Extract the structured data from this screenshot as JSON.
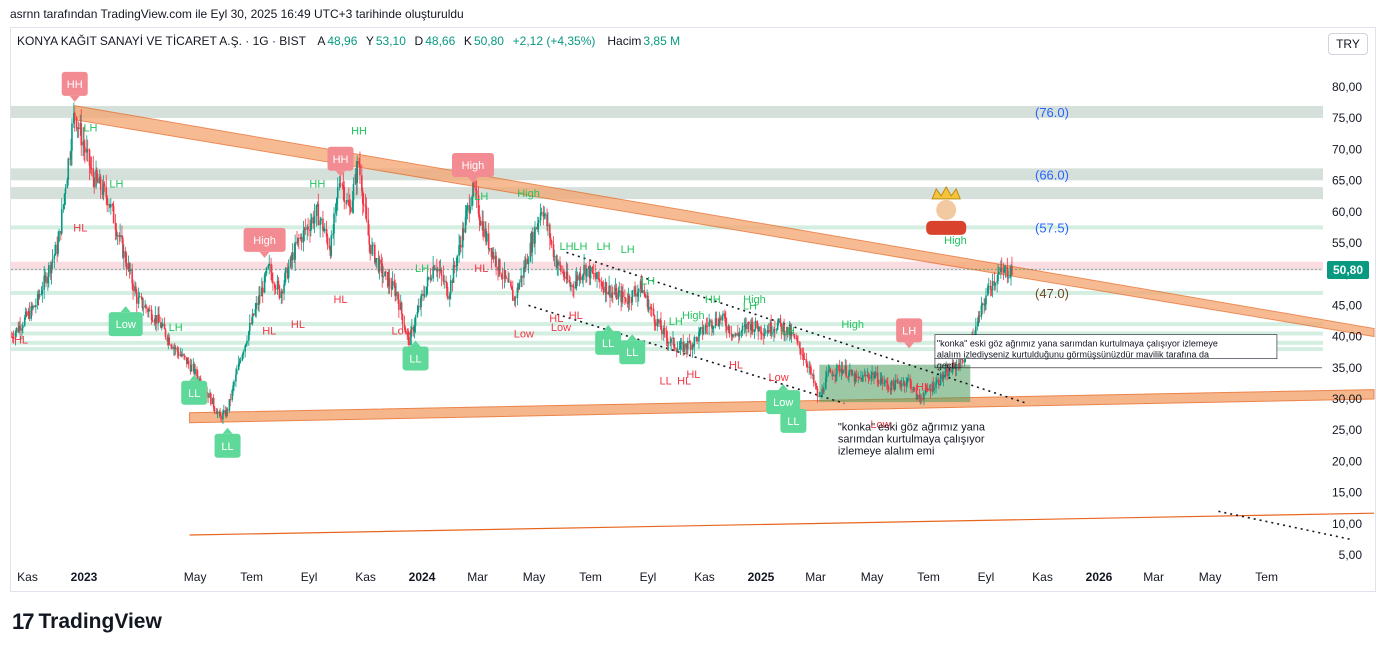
{
  "caption": "asrnn tarafından TradingView.com ile Eyl 30, 2025 16:49 UTC+3 tarihinde oluşturuldu",
  "header": {
    "symbol": "KONYA KAĞIT SANAYİ VE TİCARET A.Ş. · 1G · BIST",
    "open_label": "A",
    "open_value": "48,96",
    "high_label": "Y",
    "high_value": "53,10",
    "low_label": "D",
    "low_value": "48,66",
    "close_label": "K",
    "close_value": "50,80",
    "change": "+2,12 (+4,35%)",
    "volume_label": "Hacim",
    "volume_value": "3,85 M",
    "currency_button": "TRY"
  },
  "brand": {
    "logo": "17",
    "name": "TradingView"
  },
  "colors": {
    "up": "#089981",
    "down": "#f23645",
    "channel_fill": "#f5a56f",
    "channel_stroke": "#e8651e",
    "level_band": "#c8d6cf",
    "green_label": "#22c55e",
    "red_label": "#f23645",
    "fib_text": "#2962ff",
    "dotted": "#131722"
  },
  "chart_data": {
    "type": "candlestick",
    "y_axis": {
      "ticks": [
        "80,00",
        "75,00",
        "70,00",
        "65,00",
        "60,00",
        "55,00",
        "50,00",
        "45,00",
        "40,00",
        "35,00",
        "30,00",
        "25,00",
        "20,00",
        "15,00",
        "10,00",
        "5,00"
      ],
      "ylim": [
        3,
        83
      ]
    },
    "x_axis": {
      "ticks": [
        "Kas",
        "2023",
        "May",
        "Tem",
        "Eyl",
        "Kas",
        "2024",
        "Mar",
        "May",
        "Tem",
        "Eyl",
        "Kas",
        "2025",
        "Mar",
        "May",
        "Tem",
        "Eyl",
        "Kas",
        "2026",
        "Mar",
        "May",
        "Tem"
      ],
      "bold": [
        "2023",
        "2024",
        "2025",
        "2026"
      ]
    },
    "last_price": "50,80",
    "price_series": [
      [
        "2022-10-15",
        40
      ],
      [
        "2022-11-10",
        45
      ],
      [
        "2022-12-05",
        55
      ],
      [
        "2022-12-22",
        76
      ],
      [
        "2023-01-10",
        66
      ],
      [
        "2023-01-28",
        62
      ],
      [
        "2023-02-10",
        55
      ],
      [
        "2023-02-28",
        46
      ],
      [
        "2023-03-20",
        43
      ],
      [
        "2023-04-10",
        38
      ],
      [
        "2023-04-28",
        35
      ],
      [
        "2023-05-15",
        31
      ],
      [
        "2023-05-28",
        27
      ],
      [
        "2023-06-05",
        28
      ],
      [
        "2023-06-20",
        37
      ],
      [
        "2023-07-05",
        44
      ],
      [
        "2023-07-20",
        51
      ],
      [
        "2023-08-01",
        47
      ],
      [
        "2023-08-20",
        55
      ],
      [
        "2023-09-10",
        60
      ],
      [
        "2023-09-25",
        54
      ],
      [
        "2023-10-05",
        66
      ],
      [
        "2023-10-15",
        60
      ],
      [
        "2023-10-25",
        68
      ],
      [
        "2023-11-05",
        55
      ],
      [
        "2023-11-20",
        50
      ],
      [
        "2023-12-05",
        47
      ],
      [
        "2023-12-18",
        39
      ],
      [
        "2023-12-30",
        45
      ],
      [
        "2024-01-15",
        52
      ],
      [
        "2024-01-30",
        47
      ],
      [
        "2024-02-15",
        57
      ],
      [
        "2024-02-25",
        64
      ],
      [
        "2024-03-10",
        56
      ],
      [
        "2024-03-25",
        51
      ],
      [
        "2024-04-10",
        46
      ],
      [
        "2024-04-25",
        53
      ],
      [
        "2024-05-10",
        61
      ],
      [
        "2024-05-25",
        52
      ],
      [
        "2024-06-10",
        48
      ],
      [
        "2024-06-25",
        51
      ],
      [
        "2024-07-10",
        49
      ],
      [
        "2024-07-25",
        47
      ],
      [
        "2024-08-10",
        46
      ],
      [
        "2024-08-25",
        48
      ],
      [
        "2024-09-05",
        44
      ],
      [
        "2024-09-20",
        40
      ],
      [
        "2024-10-05",
        38
      ],
      [
        "2024-10-20",
        39
      ],
      [
        "2024-11-05",
        42
      ],
      [
        "2024-11-20",
        43
      ],
      [
        "2024-12-05",
        40
      ],
      [
        "2024-12-20",
        42
      ],
      [
        "2025-01-05",
        41
      ],
      [
        "2025-01-20",
        42
      ],
      [
        "2025-02-05",
        40
      ],
      [
        "2025-02-20",
        36
      ],
      [
        "2025-03-05",
        30
      ],
      [
        "2025-03-15",
        34
      ],
      [
        "2025-03-30",
        35
      ],
      [
        "2025-04-15",
        33
      ],
      [
        "2025-05-01",
        34
      ],
      [
        "2025-05-20",
        32
      ],
      [
        "2025-06-10",
        33
      ],
      [
        "2025-06-20",
        30
      ],
      [
        "2025-07-05",
        32
      ],
      [
        "2025-07-20",
        34
      ],
      [
        "2025-08-05",
        36
      ],
      [
        "2025-08-15",
        38
      ],
      [
        "2025-08-25",
        43
      ],
      [
        "2025-09-05",
        48
      ],
      [
        "2025-09-15",
        50
      ],
      [
        "2025-09-30",
        50.8
      ]
    ],
    "horizontal_levels": [
      {
        "y": 76.0,
        "label": "(76.0)"
      },
      {
        "y": 66.0,
        "label": "(66.0)"
      },
      {
        "y": 63.0,
        "label": ""
      },
      {
        "y": 57.5,
        "label": "(57.5)"
      },
      {
        "y": 47.0,
        "label": "(47.0)"
      },
      {
        "y": 42.0,
        "label": ""
      },
      {
        "y": 40.5,
        "label": ""
      },
      {
        "y": 39.0,
        "label": ""
      },
      {
        "y": 38.0,
        "label": ""
      }
    ],
    "pattern_labels": [
      {
        "text": "HH",
        "style": "box-red",
        "date": "2022-12-22",
        "y": 80.5
      },
      {
        "text": "LH",
        "style": "green",
        "date": "2023-01-08",
        "y": 73.5
      },
      {
        "text": "LH",
        "style": "green",
        "date": "2023-02-05",
        "y": 64.5
      },
      {
        "text": "HL",
        "style": "red",
        "date": "2022-12-28",
        "y": 57.5
      },
      {
        "text": "Low",
        "style": "box-green",
        "date": "2023-02-15",
        "y": 42
      },
      {
        "text": "HL",
        "style": "red",
        "date": "2022-10-25",
        "y": 39.5
      },
      {
        "text": "LH",
        "style": "green",
        "date": "2023-04-10",
        "y": 41.5
      },
      {
        "text": "LL",
        "style": "box-green",
        "date": "2023-04-30",
        "y": 31
      },
      {
        "text": "LL",
        "style": "box-green",
        "date": "2023-06-05",
        "y": 22.5
      },
      {
        "text": "High",
        "style": "box-red",
        "date": "2023-07-15",
        "y": 55.5
      },
      {
        "text": "HL",
        "style": "red",
        "date": "2023-07-20",
        "y": 41
      },
      {
        "text": "HL",
        "style": "red",
        "date": "2023-08-20",
        "y": 42
      },
      {
        "text": "HH",
        "style": "green",
        "date": "2023-09-10",
        "y": 64.5
      },
      {
        "text": "HH",
        "style": "box-red",
        "date": "2023-10-05",
        "y": 68.5
      },
      {
        "text": "HH",
        "style": "green",
        "date": "2023-10-25",
        "y": 73
      },
      {
        "text": "HL",
        "style": "red",
        "date": "2023-10-05",
        "y": 46
      },
      {
        "text": "Low",
        "style": "red",
        "date": "2023-12-10",
        "y": 41
      },
      {
        "text": "LL",
        "style": "box-green",
        "date": "2023-12-25",
        "y": 36.5
      },
      {
        "text": "LH",
        "style": "green",
        "date": "2024-01-01",
        "y": 51
      },
      {
        "text": "High",
        "style": "box-red",
        "date": "2024-02-25",
        "y": 67.5
      },
      {
        "text": "LH",
        "style": "green",
        "date": "2024-03-05",
        "y": 62.5
      },
      {
        "text": "HL",
        "style": "red",
        "date": "2024-03-05",
        "y": 51
      },
      {
        "text": "High",
        "style": "green",
        "date": "2024-04-25",
        "y": 63
      },
      {
        "text": "Low",
        "style": "red",
        "date": "2024-04-20",
        "y": 40.5
      },
      {
        "text": "LH",
        "style": "green",
        "date": "2024-06-05",
        "y": 54.5
      },
      {
        "text": "LH",
        "style": "green",
        "date": "2024-06-20",
        "y": 54.5
      },
      {
        "text": "LH",
        "style": "green",
        "date": "2024-07-15",
        "y": 54.5
      },
      {
        "text": "LH",
        "style": "green",
        "date": "2024-08-10",
        "y": 54
      },
      {
        "text": "HL",
        "style": "red",
        "date": "2024-05-25",
        "y": 43
      },
      {
        "text": "HL",
        "style": "red",
        "date": "2024-06-15",
        "y": 43.5
      },
      {
        "text": "Low",
        "style": "red",
        "date": "2024-05-30",
        "y": 41.5
      },
      {
        "text": "LL",
        "style": "box-green",
        "date": "2024-07-20",
        "y": 39
      },
      {
        "text": "LL",
        "style": "box-green",
        "date": "2024-08-15",
        "y": 37.5
      },
      {
        "text": "LH",
        "style": "green",
        "date": "2024-09-01",
        "y": 49
      },
      {
        "text": "LH",
        "style": "green",
        "date": "2024-10-01",
        "y": 42.5
      },
      {
        "text": "High",
        "style": "green",
        "date": "2024-10-20",
        "y": 43.5
      },
      {
        "text": "HH",
        "style": "green",
        "date": "2024-11-10",
        "y": 46
      },
      {
        "text": "High",
        "style": "green",
        "date": "2024-12-25",
        "y": 46
      },
      {
        "text": "LH",
        "style": "green",
        "date": "2024-12-20",
        "y": 45
      },
      {
        "text": "LH",
        "style": "green",
        "date": "2025-01-30",
        "y": 41
      },
      {
        "text": "HL",
        "style": "red",
        "date": "2024-10-10",
        "y": 33
      },
      {
        "text": "HL",
        "style": "red",
        "date": "2024-10-20",
        "y": 34
      },
      {
        "text": "LL",
        "style": "red",
        "date": "2024-09-20",
        "y": 33
      },
      {
        "text": "HL",
        "style": "red",
        "date": "2024-12-05",
        "y": 35.5
      },
      {
        "text": "Low",
        "style": "red",
        "date": "2025-01-20",
        "y": 33.5
      },
      {
        "text": "Low",
        "style": "box-green",
        "date": "2025-01-25",
        "y": 29.5
      },
      {
        "text": "LL",
        "style": "box-green",
        "date": "2025-02-05",
        "y": 26.5
      },
      {
        "text": "High",
        "style": "green",
        "date": "2025-04-10",
        "y": 42
      },
      {
        "text": "Low",
        "style": "red",
        "date": "2025-05-10",
        "y": 26
      },
      {
        "text": "LH",
        "style": "box-red",
        "date": "2025-06-10",
        "y": 41
      },
      {
        "text": "HL",
        "style": "red",
        "date": "2025-06-25",
        "y": 32
      },
      {
        "text": "High",
        "style": "green",
        "date": "2025-07-30",
        "y": 55.5
      }
    ],
    "annotations": [
      {
        "text": "\"konka\" eski göz ağrımız yana sarımdan kurtulmaya çalışıyor izlemeye alalım emi",
        "date": "2025-03-25",
        "y": 25.3
      },
      {
        "text": "\"konka\" eski göz ağrımız yana sarımdan kurtulmaya çalışıyor izlemeye alalım izlediyseniz kurtulduğunu görmüşsünüzdür mavilik tarafına da geçti",
        "date": "2025-07-10",
        "y": 38.7
      }
    ]
  }
}
